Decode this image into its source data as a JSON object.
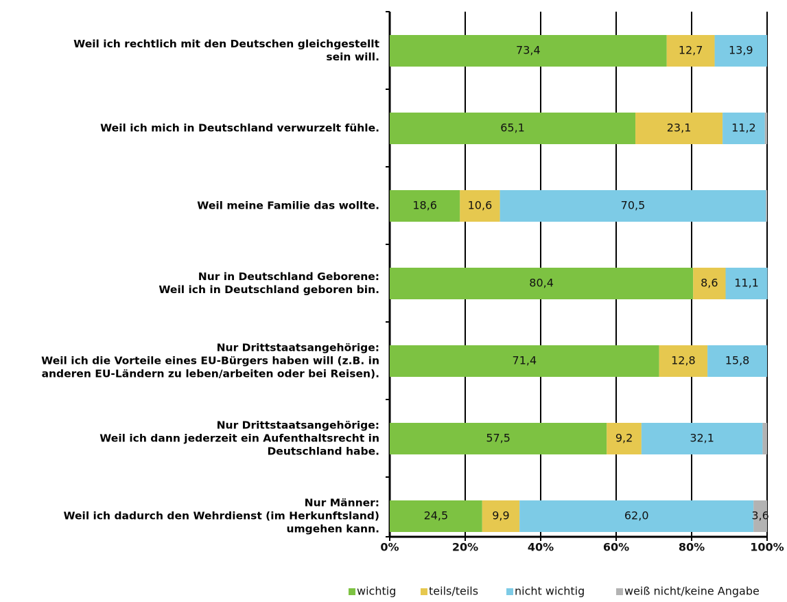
{
  "chart_data": {
    "type": "stacked-barh",
    "categories": [
      "Weil ich rechtlich mit den Deutschen gleichgestellt\nsein will.",
      "Weil ich mich in Deutschland verwurzelt fühle.",
      "Weil meine Familie das wollte.",
      "Nur in Deutschland Geborene:\nWeil ich in Deutschland geboren bin.",
      "Nur Drittstaatsangehörige:\nWeil ich die Vorteile eines EU-Bürgers haben will (z.B. in\nanderen EU-Ländern zu leben/arbeiten oder bei Reisen).",
      "Nur Drittstaatsangehörige:\nWeil ich dann jederzeit ein Aufenthaltsrecht in\nDeutschland habe.",
      "Nur Männer:\nWeil ich dadurch den Wehrdienst (im Herkunftsland)\numgehen kann."
    ],
    "series": [
      {
        "name": "wichtig",
        "color": "#7dc242",
        "values": [
          73.4,
          65.1,
          18.6,
          80.4,
          71.4,
          57.5,
          24.5
        ],
        "value_labels": [
          "73,4",
          "65,1",
          "18,6",
          "80,4",
          "71,4",
          "57,5",
          "24,5"
        ]
      },
      {
        "name": "teils/teils",
        "color": "#e6c84f",
        "values": [
          12.7,
          23.1,
          10.6,
          8.6,
          12.8,
          9.2,
          9.9
        ],
        "value_labels": [
          "12,7",
          "23,1",
          "10,6",
          "8,6",
          "12,8",
          "9,2",
          "9,9"
        ]
      },
      {
        "name": "nicht wichtig",
        "color": "#7dcbe6",
        "values": [
          13.9,
          11.2,
          70.5,
          11.1,
          15.8,
          32.1,
          62.0
        ],
        "value_labels": [
          "13,9",
          "11,2",
          "70,5",
          "11,1",
          "15,8",
          "32,1",
          "62,0"
        ]
      },
      {
        "name": "weiß nicht/keine Angabe",
        "color": "#b3b3b3",
        "values": [
          0,
          0.6,
          0.3,
          0,
          0,
          1.2,
          3.6
        ],
        "value_labels": [
          null,
          null,
          null,
          null,
          null,
          null,
          "3,6"
        ]
      }
    ],
    "xlim": [
      0,
      100
    ],
    "xticks": [
      {
        "value": 0,
        "label": "0%"
      },
      {
        "value": 20,
        "label": "20%"
      },
      {
        "value": 40,
        "label": "40%"
      },
      {
        "value": 60,
        "label": "60%"
      },
      {
        "value": 80,
        "label": "80%"
      },
      {
        "value": 100,
        "label": "100%"
      }
    ],
    "grid": true
  }
}
